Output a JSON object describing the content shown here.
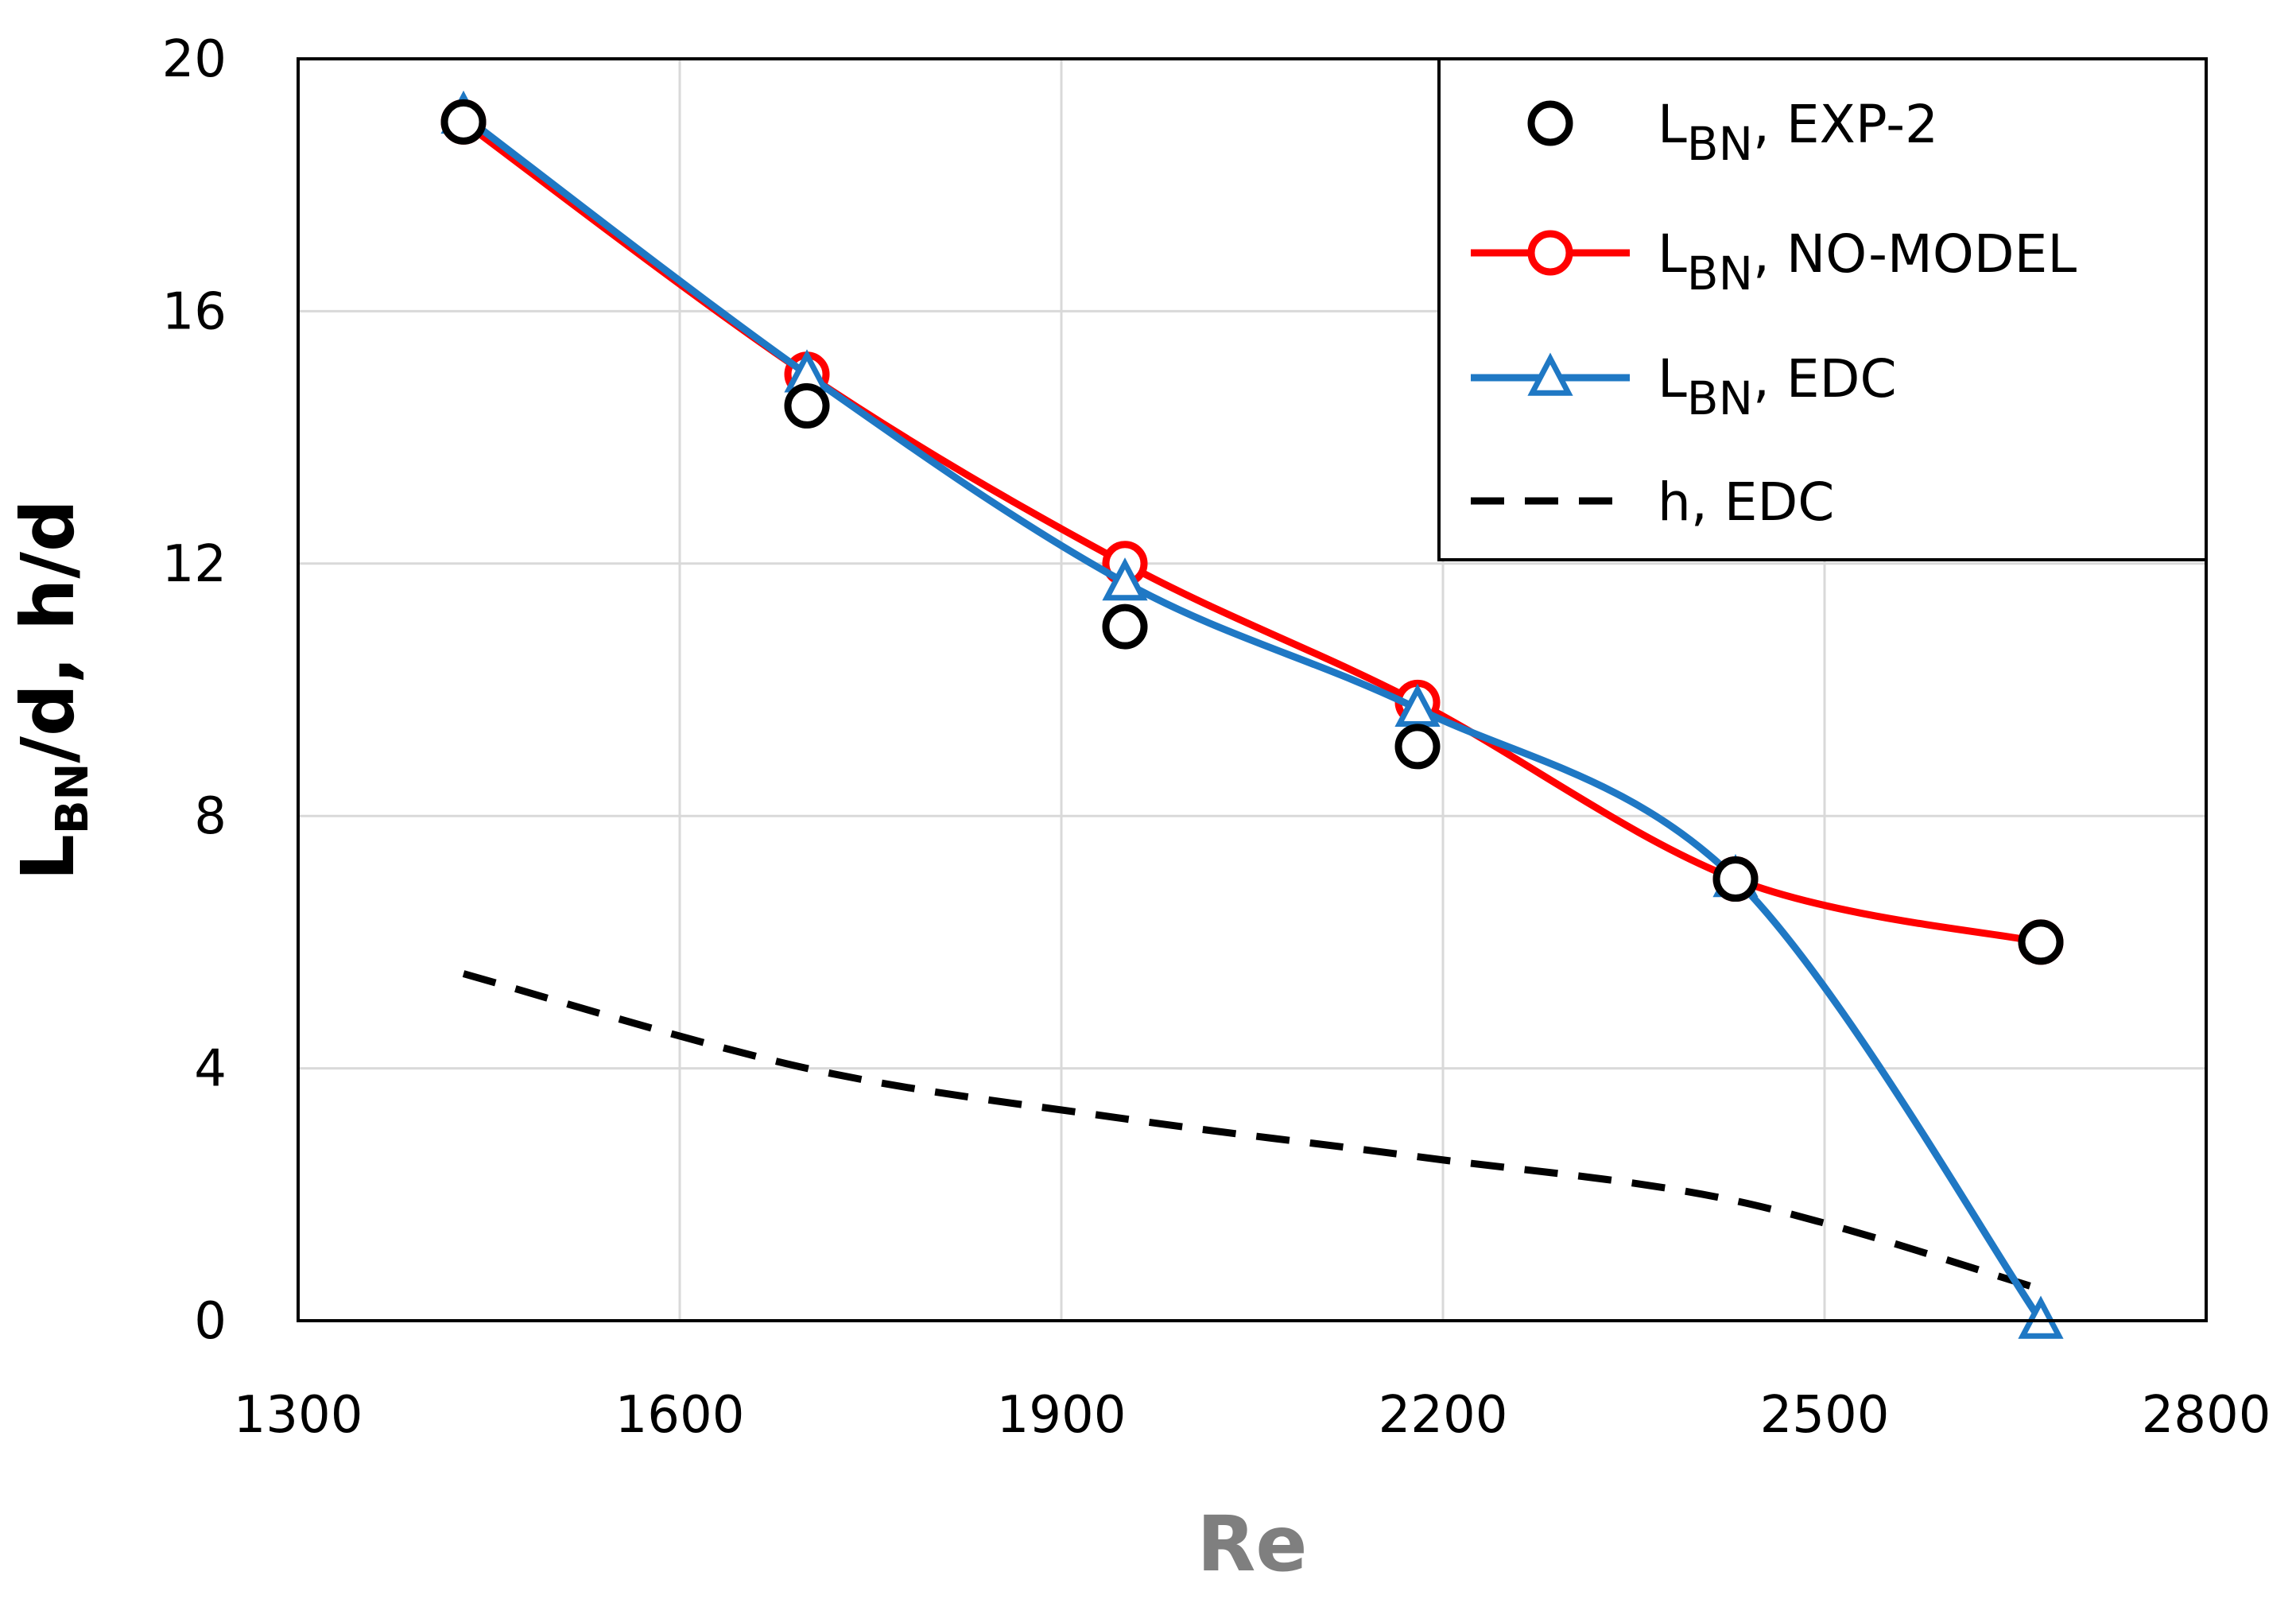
{
  "chart_data": {
    "type": "line",
    "title": "",
    "xlabel": "Re",
    "ylabel": {
      "main": "L",
      "sub": "BN",
      "rest": "/d, h/d"
    },
    "xlim": [
      1300,
      2800
    ],
    "ylim": [
      0,
      20
    ],
    "xticks": [
      1300,
      1600,
      1900,
      2200,
      2500,
      2800
    ],
    "yticks": [
      0,
      4,
      8,
      12,
      16,
      20
    ],
    "grid": true,
    "legend_position": "top-right",
    "series": [
      {
        "name": "exp2",
        "label": {
          "main": "L",
          "sub": "BN",
          "rest": ", EXP-2"
        },
        "style": "markers-only",
        "marker": "circle",
        "color": "#000000",
        "x": [
          1430,
          1700,
          1950,
          2180,
          2430,
          2670
        ],
        "y": [
          19.0,
          14.5,
          11.0,
          9.1,
          7.0,
          6.0
        ]
      },
      {
        "name": "no-model",
        "label": {
          "main": "L",
          "sub": "BN",
          "rest": ", NO-MODEL"
        },
        "style": "line-markers",
        "marker": "circle",
        "color": "#ff0000",
        "x": [
          1430,
          1700,
          1950,
          2180,
          2430,
          2670
        ],
        "y": [
          19.0,
          15.0,
          12.0,
          9.8,
          7.0,
          6.0
        ]
      },
      {
        "name": "edc",
        "label": {
          "main": "L",
          "sub": "BN",
          "rest": ", EDC"
        },
        "style": "line-markers",
        "marker": "triangle",
        "color": "#1f78c4",
        "x": [
          1430,
          1700,
          1950,
          2180,
          2430,
          2670
        ],
        "y": [
          19.1,
          15.0,
          11.7,
          9.7,
          7.0,
          0.0
        ]
      },
      {
        "name": "h-edc",
        "label": {
          "main": "h, EDC",
          "sub": "",
          "rest": ""
        },
        "style": "dashed",
        "marker": "none",
        "color": "#000000",
        "x": [
          1430,
          1700,
          1950,
          2180,
          2430,
          2670
        ],
        "y": [
          5.5,
          4.0,
          3.2,
          2.6,
          1.9,
          0.5
        ]
      }
    ]
  }
}
